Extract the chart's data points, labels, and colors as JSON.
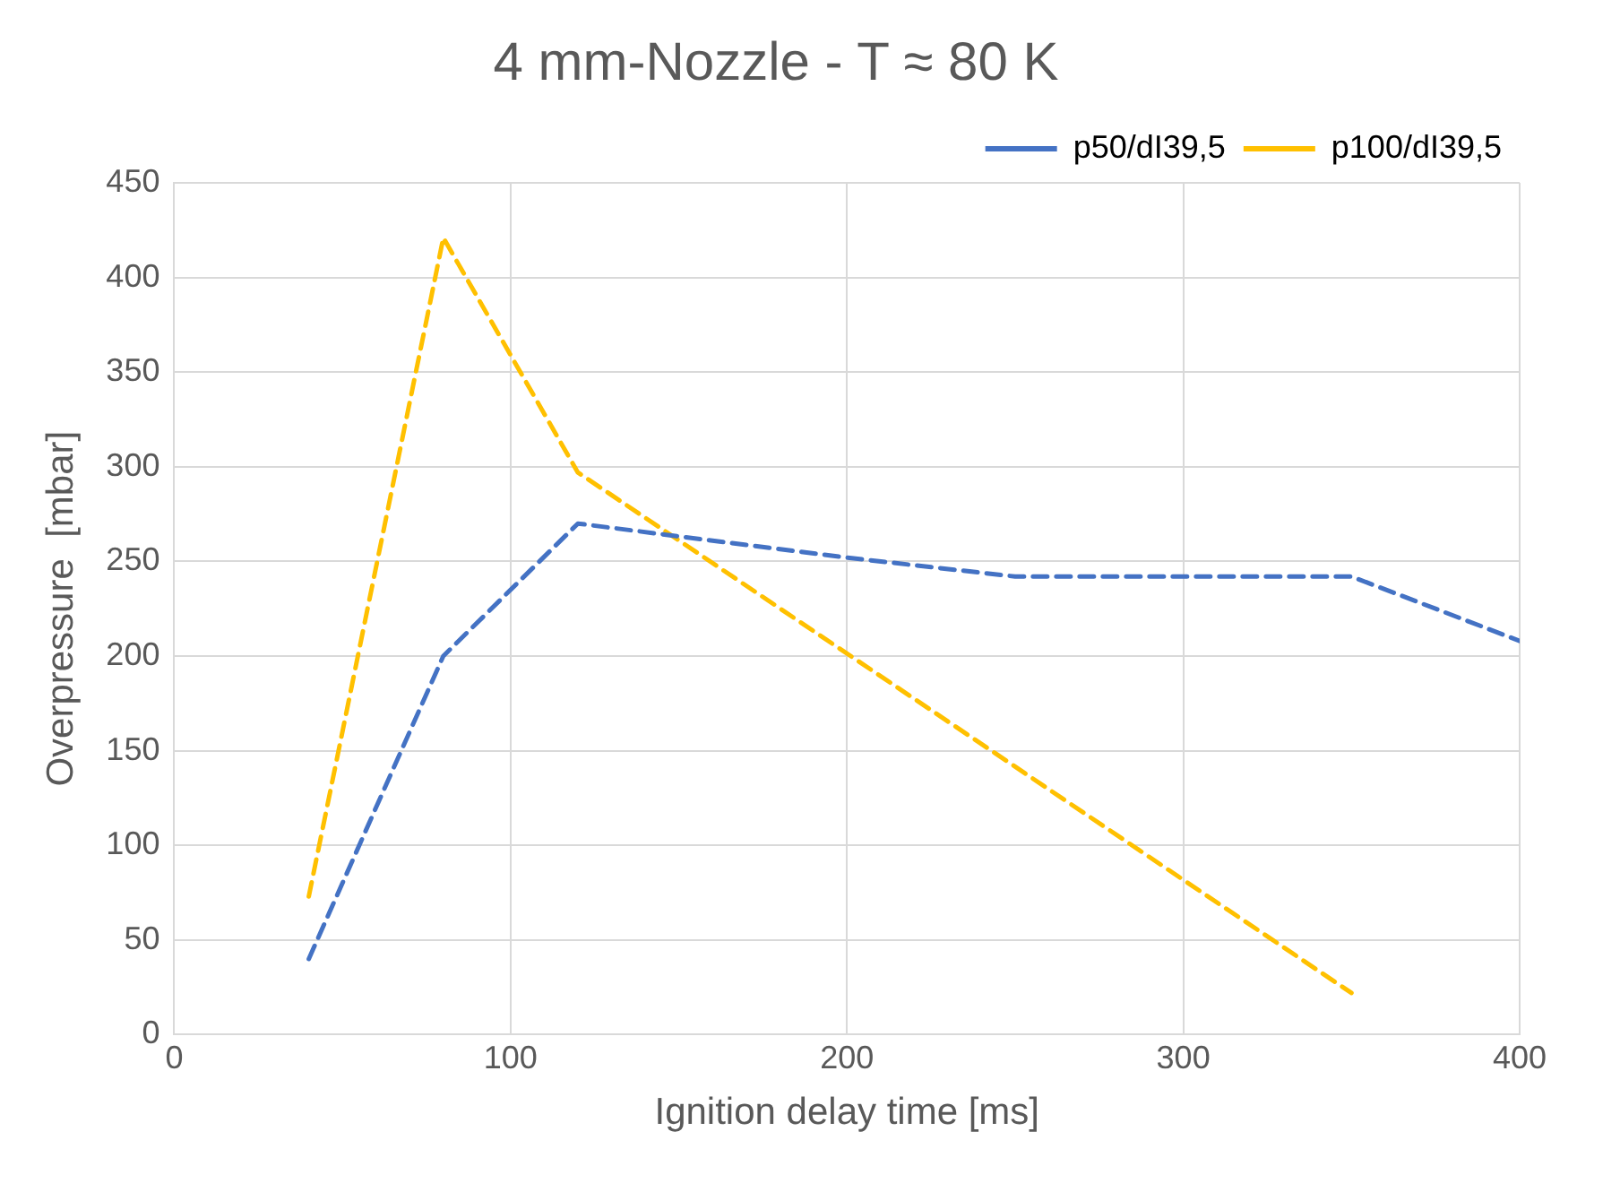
{
  "chart_data": {
    "type": "line",
    "title": "4 mm-Nozzle - T ≈ 80 K",
    "xlabel": "Ignition delay time [ms]",
    "ylabel": "Overpressure  [mbar]",
    "series": [
      {
        "name": "p50/dI39,5",
        "color": "#4472c4",
        "x": [
          40,
          80,
          120,
          200,
          250,
          350,
          400
        ],
        "values": [
          40,
          200,
          270,
          252,
          242,
          242,
          208
        ]
      },
      {
        "name": "p100/dI39,5",
        "color": "#ffc000",
        "x": [
          40,
          80,
          120,
          350
        ],
        "values": [
          73,
          421,
          297,
          22
        ]
      }
    ],
    "xlim": [
      0,
      400
    ],
    "xticks": [
      0,
      100,
      200,
      300,
      400
    ],
    "ylim": [
      0,
      450
    ],
    "yticks": [
      0,
      50,
      100,
      150,
      200,
      250,
      300,
      350,
      400,
      450
    ],
    "grid": true,
    "legend": "top right",
    "marker": "none",
    "line_style": "dashed"
  }
}
